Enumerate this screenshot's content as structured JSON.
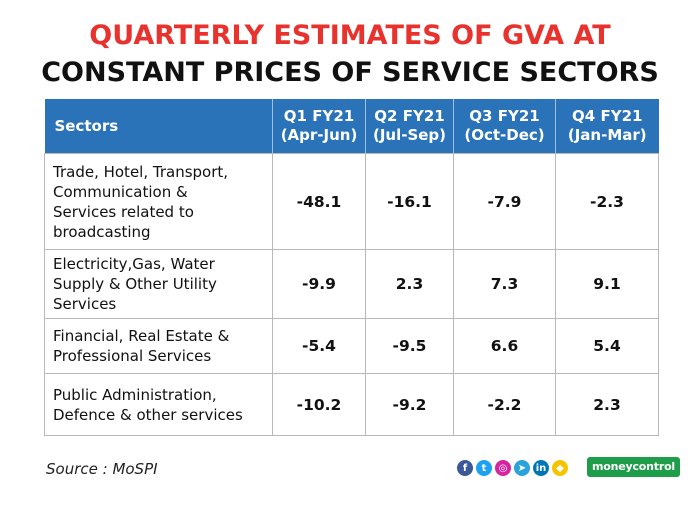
{
  "title_line1": "QUARTERLY ESTIMATES OF GVA AT",
  "title_line2": "CONSTANT PRICES OF SERVICE SECTORS",
  "chart_data": {
    "type": "table",
    "title": "QUARTERLY ESTIMATES OF GVA AT CONSTANT PRICES OF SERVICE SECTORS",
    "headers": {
      "sectors": "Sectors",
      "q1": [
        "Q1 FY21",
        "(Apr-Jun)"
      ],
      "q2": [
        "Q2 FY21",
        "(Jul-Sep)"
      ],
      "q3": [
        "Q3 FY21",
        "(Oct-Dec)"
      ],
      "q4": [
        "Q4 FY21",
        "(Jan-Mar)"
      ]
    },
    "rows": [
      {
        "sector_lines": [
          "Trade, Hotel, Transport,",
          "Communication &",
          "Services related to",
          "broadcasting"
        ],
        "values": [
          "-48.1",
          "-16.1",
          "-7.9",
          "-2.3"
        ]
      },
      {
        "sector_lines": [
          "Electricity,Gas, Water",
          "Supply & Other Utility",
          "Services"
        ],
        "values": [
          "-9.9",
          "2.3",
          "7.3",
          "9.1"
        ]
      },
      {
        "sector_lines": [
          "Financial, Real Estate &",
          "Professional Services"
        ],
        "values": [
          "-5.4",
          "-9.5",
          "6.6",
          "5.4"
        ]
      },
      {
        "sector_lines": [
          "Public Administration,",
          "Defence & other services"
        ],
        "values": [
          "-10.2",
          "-9.2",
          "-2.2",
          "2.3"
        ]
      }
    ]
  },
  "source": "Source : MoSPI",
  "social_icons": [
    {
      "name": "facebook-icon",
      "glyph": "f",
      "color": "#3b5998"
    },
    {
      "name": "twitter-icon",
      "glyph": "t",
      "color": "#1da1f2"
    },
    {
      "name": "instagram-icon",
      "glyph": "◎",
      "color": "#d6249f"
    },
    {
      "name": "telegram-icon",
      "glyph": "➤",
      "color": "#2aa3db"
    },
    {
      "name": "linkedin-icon",
      "glyph": "in",
      "color": "#0077b5"
    },
    {
      "name": "snapchat-icon",
      "glyph": "◆",
      "color": "#f5c400"
    }
  ],
  "brand": "moneycontrol",
  "colors": {
    "title_accent": "#e8322e",
    "header_bg": "#2a73b9",
    "brand_bg": "#1e9d4b"
  }
}
